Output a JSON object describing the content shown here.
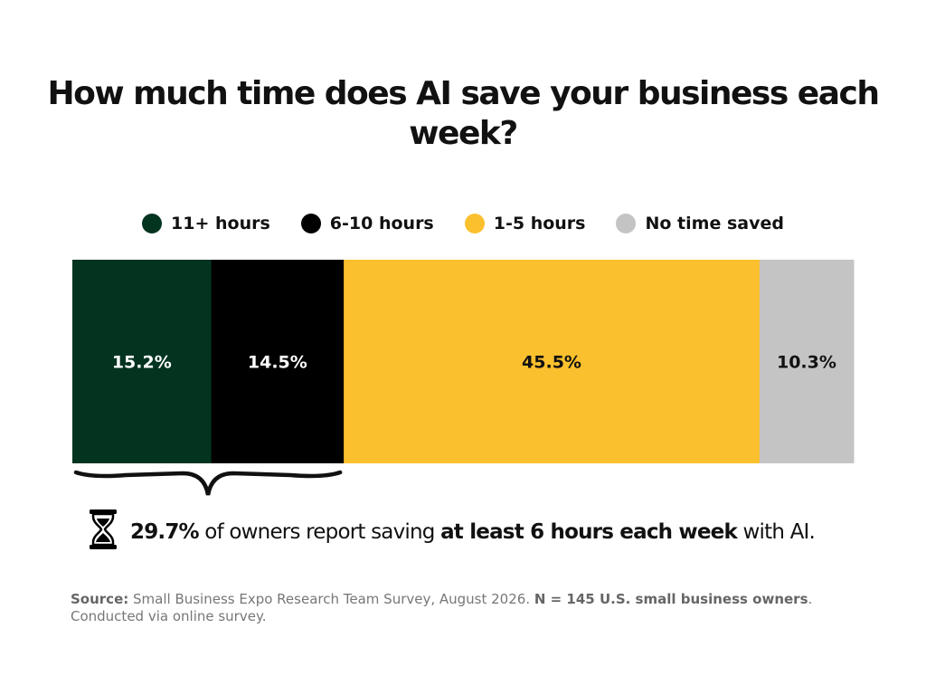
{
  "chart_data": {
    "type": "bar",
    "orientation": "horizontal-stacked",
    "title": "How much time does AI save your business each week?",
    "series": [
      {
        "name": "11+ hours",
        "value": 15.2,
        "label": "15.2%",
        "color": "#023420",
        "label_color": "#ffffff"
      },
      {
        "name": "6-10 hours",
        "value": 14.5,
        "label": "14.5%",
        "color": "#000000",
        "label_color": "#ffffff"
      },
      {
        "name": "1-5 hours",
        "value": 45.5,
        "label": "45.5%",
        "color": "#fbc02d",
        "label_color": "#111111"
      },
      {
        "name": "No time saved",
        "value": 10.3,
        "label": "10.3%",
        "color": "#c4c4c4",
        "label_color": "#111111"
      }
    ],
    "legend_position": "top-center",
    "grid": false
  },
  "callout": {
    "icon": "hourglass-icon",
    "value": "29.7%",
    "text_1": " of owners report saving ",
    "emphasis": "at least 6 hours each week",
    "text_2": " with AI."
  },
  "source": {
    "label": "Source:",
    "text": " Small Business Expo Research Team Survey, August 2026. ",
    "n": "N = 145  U.S. small business owners",
    "end": ".",
    "line2": "Conducted via online survey."
  }
}
